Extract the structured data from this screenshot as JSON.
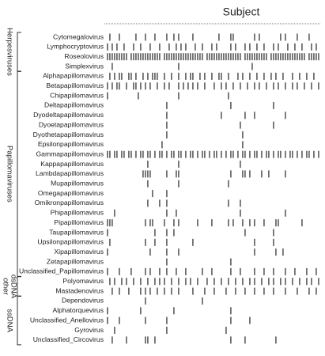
{
  "chart_data": {
    "type": "presence",
    "title": "Subject",
    "xlim": [
      0,
      90
    ],
    "color": "#6e6e6e",
    "groups": [
      {
        "label": [
          "Herpesviruses"
        ],
        "rows": [
          {
            "name": "Cytomegalovirus",
            "present": [
              1,
              5,
              12,
              16,
              20,
              25,
              28,
              30,
              36,
              47,
              52,
              53,
              62,
              64,
              73,
              75,
              80,
              85
            ]
          },
          {
            "name": "Lymphocryptovirus",
            "present": [
              0,
              2,
              4,
              7,
              11,
              14,
              18,
              22,
              26,
              29,
              31,
              33,
              37,
              40,
              44,
              46,
              52,
              54,
              58,
              60,
              63,
              66,
              70,
              72,
              76,
              79,
              82,
              86,
              88
            ]
          },
          {
            "name": "Roseolovirus",
            "present": [
              0,
              1,
              2,
              3,
              4,
              5,
              6,
              7,
              8,
              10,
              11,
              12,
              13,
              14,
              15,
              16,
              17,
              18,
              19,
              20,
              21,
              22,
              24,
              25,
              26,
              27,
              28,
              29,
              30,
              31,
              32,
              33,
              34,
              35,
              36,
              37,
              38,
              39,
              40,
              42,
              43,
              44,
              45,
              46,
              47,
              48,
              49,
              50,
              51,
              52,
              53,
              54,
              55,
              56,
              58,
              59,
              60,
              61,
              62,
              63,
              64,
              65,
              66,
              67,
              69,
              70,
              71,
              72,
              73,
              74,
              75,
              76,
              77,
              78,
              79,
              80,
              81,
              82,
              83,
              85,
              86,
              87,
              88,
              89
            ]
          },
          {
            "name": "Simplexvirus",
            "present": [
              2,
              30,
              61
            ]
          }
        ]
      },
      {
        "label": [
          "Papillomaviruses"
        ],
        "rows": [
          {
            "name": "Alphapapillomavirus",
            "present": [
              1,
              3,
              5,
              6,
              9,
              10,
              12,
              15,
              17,
              19,
              20,
              21,
              24,
              27,
              30,
              33,
              35,
              36,
              39,
              41,
              44,
              47,
              48,
              51,
              55,
              57,
              60,
              63,
              66,
              69,
              71,
              74,
              78,
              81,
              84,
              87
            ]
          },
          {
            "name": "Betapapillomavirus",
            "present": [
              0,
              2,
              4,
              5,
              8,
              11,
              12,
              14,
              16,
              18,
              21,
              24,
              26,
              30,
              32,
              34,
              36,
              38,
              41,
              45,
              48,
              50,
              53,
              56,
              59,
              62,
              64,
              67,
              70,
              72,
              75,
              78,
              80,
              83,
              86,
              89
            ]
          },
          {
            "name": "Chipapillomavirus",
            "present": [
              0,
              13,
              30,
              51
            ]
          },
          {
            "name": "Deltapapillomavirus",
            "present": [
              25,
              52,
              70
            ]
          },
          {
            "name": "Dyodeltapapillomavirus",
            "present": [
              25,
              48,
              58,
              62,
              75
            ]
          },
          {
            "name": "Dyoetapapillomavirus",
            "present": [
              25,
              56,
              70
            ]
          },
          {
            "name": "Dyothetapapillomavirus",
            "present": [
              25,
              57
            ]
          },
          {
            "name": "Epsilonpapillomavirus",
            "present": [
              23,
              57
            ]
          },
          {
            "name": "Gammapapillomavirus",
            "present": [
              0,
              1,
              3,
              4,
              6,
              7,
              9,
              10,
              12,
              14,
              15,
              17,
              18,
              20,
              22,
              23,
              25,
              27,
              28,
              30,
              31,
              33,
              35,
              36,
              38,
              40,
              41,
              43,
              45,
              46,
              48,
              50,
              52,
              53,
              55,
              57,
              58,
              60,
              62,
              63,
              65,
              67,
              68,
              70,
              72,
              73,
              75,
              77,
              78,
              80,
              82,
              84,
              85,
              87,
              89
            ]
          },
          {
            "name": "Kappapapillomavirus",
            "present": [
              17,
              30,
              56
            ]
          },
          {
            "name": "Lambdapapillomavirus",
            "present": [
              15,
              16,
              17,
              18,
              25,
              29,
              30,
              52,
              57,
              58,
              60,
              65,
              68,
              75
            ]
          },
          {
            "name": "Mupapillomavirus",
            "present": [
              17,
              30,
              51
            ]
          },
          {
            "name": "Omegapapillomavirus",
            "present": [
              19,
              25
            ]
          },
          {
            "name": "Omikronpapillomavirus",
            "present": [
              17,
              22,
              25,
              51,
              56
            ]
          },
          {
            "name": "Phipapillomavirus",
            "present": [
              3,
              25,
              29,
              56,
              75
            ]
          },
          {
            "name": "Pipapillomavirus",
            "present": [
              0,
              1,
              2,
              16,
              18,
              19,
              24,
              28,
              30,
              38,
              44,
              51,
              53,
              57,
              60,
              62,
              66,
              71,
              72,
              82
            ]
          },
          {
            "name": "Taupapillomavirus",
            "present": [
              0,
              20,
              25,
              28,
              58,
              70
            ]
          },
          {
            "name": "Upsilonpapillomavirus",
            "present": [
              1,
              16,
              20,
              25,
              36,
              62,
              70
            ]
          },
          {
            "name": "Xipapillomavirus",
            "present": [
              0,
              18,
              25,
              30,
              62,
              71,
              74
            ]
          },
          {
            "name": "Zetapapillomavirus",
            "present": [
              25,
              52
            ]
          },
          {
            "name": "Unclassified_Papillomavirus",
            "present": [
              0,
              5,
              10,
              16,
              18,
              22,
              25,
              29,
              33,
              40,
              44,
              52,
              56,
              62,
              66,
              70,
              75,
              79,
              84,
              88
            ]
          }
        ]
      },
      {
        "label": [
          "other",
          "dsDNA"
        ],
        "rows": [
          {
            "name": "Polyomavirus",
            "present": [
              1,
              3,
              6,
              8,
              11,
              14,
              17,
              20,
              22,
              24,
              27,
              30,
              33,
              35,
              38,
              42,
              45,
              48,
              51,
              54,
              57,
              60,
              62,
              65,
              68,
              70,
              73,
              75,
              78,
              81,
              84,
              86,
              89
            ]
          },
          {
            "name": "Mastadenovirus",
            "present": [
              2,
              5,
              9,
              14,
              16,
              18,
              21,
              24,
              27,
              30,
              36,
              41,
              45,
              50,
              54,
              58,
              62,
              66,
              70,
              75,
              80,
              85,
              88
            ]
          }
        ]
      },
      {
        "label": [
          "ssDNA"
        ],
        "rows": [
          {
            "name": "Dependovirus",
            "present": [
              16,
              40
            ]
          },
          {
            "name": "Alphatorquevirus",
            "present": [
              0,
              14,
              28,
              52
            ]
          },
          {
            "name": "Unclassified_Anellovirus",
            "present": [
              0,
              5,
              16,
              25,
              52,
              60
            ]
          },
          {
            "name": "Gyrovirus",
            "present": [
              3,
              25,
              50
            ]
          },
          {
            "name": "Unclassified_Circovirus",
            "present": [
              2,
              8,
              16,
              17,
              20,
              52,
              58,
              71
            ]
          }
        ]
      }
    ]
  }
}
